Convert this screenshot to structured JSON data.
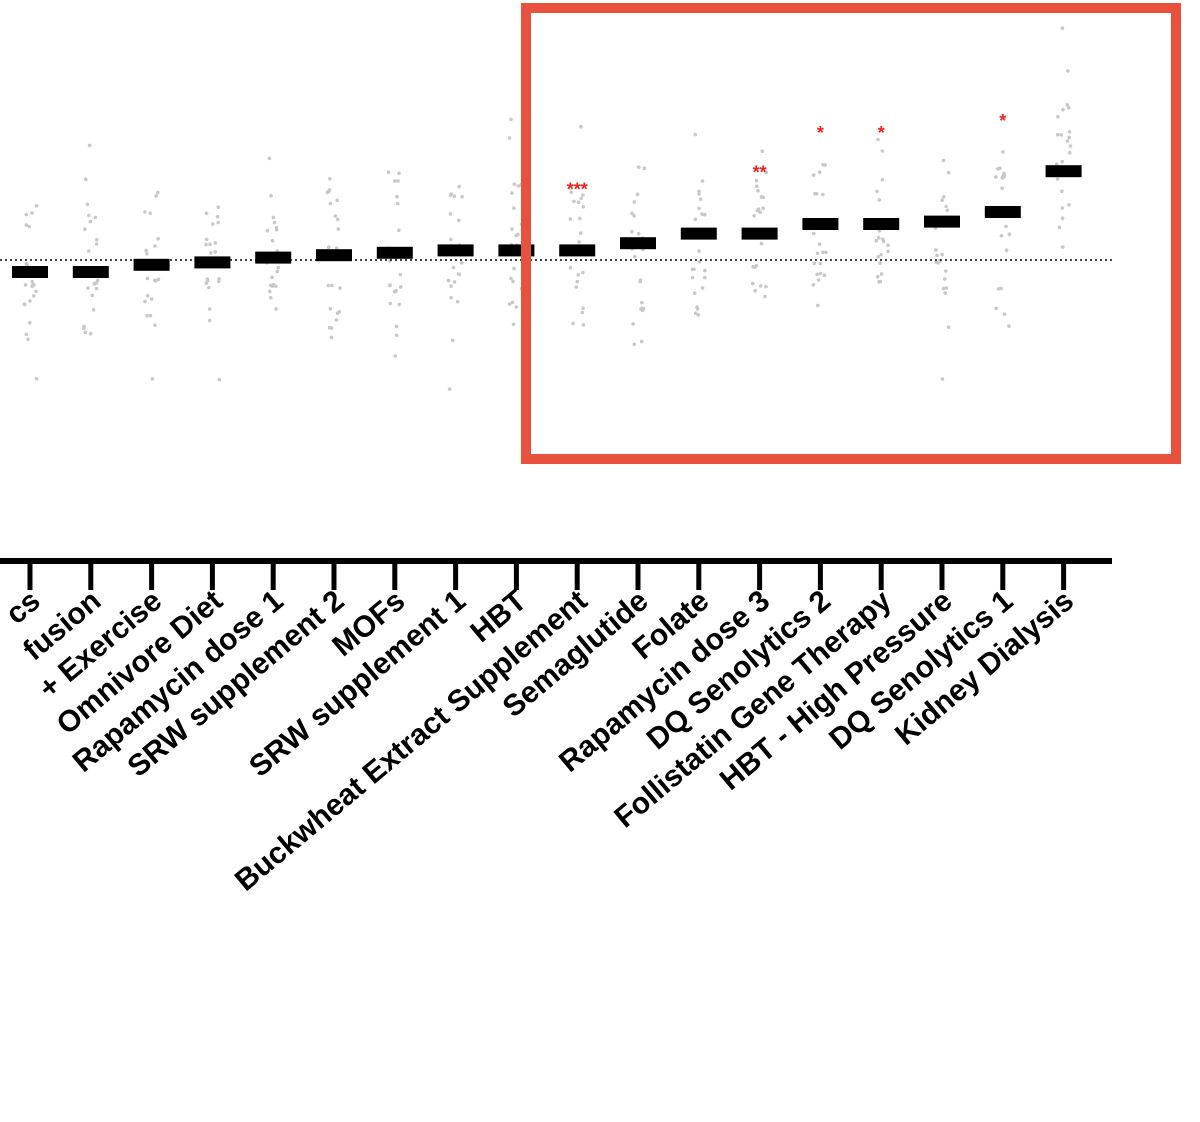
{
  "chart_data": {
    "type": "scatter",
    "description_style": "dot plot with group means (horizontal bars) and baseline reference line",
    "categories": [
      "cs",
      "fusion",
      "+ Exercise",
      "Omnivore Diet",
      "Rapamycin dose 1",
      "SRW supplement 2",
      "MOFs",
      "SRW supplement 1",
      "HBT",
      "Buckwheat Extract Supplement",
      "Semaglutide",
      "Folate",
      "Rapamycin dose 3",
      "DQ Senolytics 2",
      "Follistatin Gene Therapy",
      "HBT - High Pressure",
      "DQ Senolytics 1",
      "Kidney Dialysis"
    ],
    "means": [
      -0.05,
      -0.05,
      -0.02,
      -0.01,
      0.01,
      0.02,
      0.03,
      0.04,
      0.04,
      0.04,
      0.07,
      0.11,
      0.11,
      0.15,
      0.15,
      0.16,
      0.2,
      0.37
    ],
    "significance": [
      "",
      "",
      "",
      "",
      "",
      "",
      "",
      "",
      "",
      "***",
      "",
      "",
      "**",
      "*",
      "*",
      "",
      "*",
      ""
    ],
    "baseline": 0,
    "ylim": [
      -1.0,
      1.0
    ],
    "highlight_box_color": "#e8513e",
    "significance_color": "#ee2222",
    "point_color": "#c8c8c8",
    "mean_color": "#000000"
  }
}
